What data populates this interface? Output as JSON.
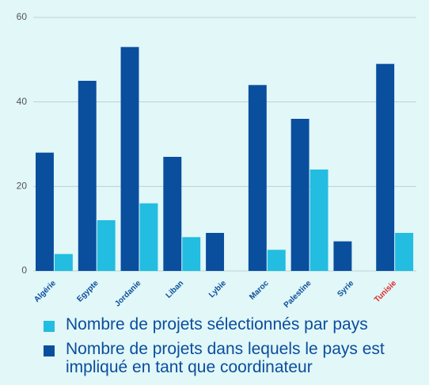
{
  "chart_data": {
    "type": "bar",
    "categories": [
      "Algérie",
      "Egypte",
      "Jordanie",
      "Liban",
      "Lybie",
      "Maroc",
      "Palestine",
      "Syrie",
      "Tunisie"
    ],
    "category_label_colors": [
      "#0b4d9c",
      "#0b4d9c",
      "#0b4d9c",
      "#0b4d9c",
      "#0b4d9c",
      "#0b4d9c",
      "#0b4d9c",
      "#0b4d9c",
      "#e0292b"
    ],
    "series": [
      {
        "name": "Nombre de projets sélectionnés par pays",
        "color": "#22bde0",
        "values": [
          4,
          12,
          16,
          8,
          0,
          5,
          24,
          0,
          9
        ]
      },
      {
        "name": "Nombre de projets dans lequels le pays est impliqué en tant que coordinateur",
        "color": "#0a4e9e",
        "values": [
          28,
          45,
          53,
          27,
          9,
          44,
          36,
          7,
          49
        ]
      }
    ],
    "ylim": [
      0,
      60
    ],
    "yticks": [
      0,
      20,
      40,
      60
    ],
    "grid": true
  }
}
